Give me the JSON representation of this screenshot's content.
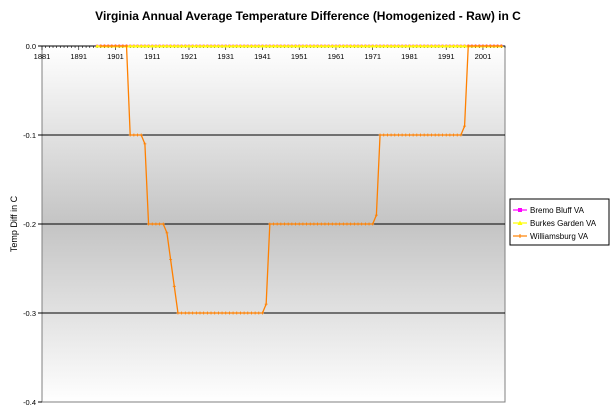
{
  "chart_data": {
    "type": "line",
    "title": "Virginia Annual Average Temperature Difference (Homogenized - Raw) in C",
    "xlabel": "",
    "ylabel": "Temp Diff in C",
    "xlim": [
      1881,
      2007
    ],
    "ylim": [
      -0.4,
      0.0
    ],
    "x_ticks": [
      "1881",
      "1891",
      "1901",
      "1911",
      "1921",
      "1931",
      "1941",
      "1951",
      "1961",
      "1971",
      "1981",
      "1991",
      "2001"
    ],
    "y_ticks": [
      "0.0",
      "-0.1",
      "-0.2",
      "-0.3",
      "-0.4"
    ],
    "grid": "horizontal",
    "legend_position": "right",
    "series": [
      {
        "name": "Bremo Bluff VA",
        "color": "#ff00ff",
        "marker": "square",
        "x": [
          1896,
          2006
        ],
        "y": [
          0.0,
          0.0
        ]
      },
      {
        "name": "Burkes Garden VA",
        "color": "#ffff00",
        "marker": "triangle",
        "x": [
          1896,
          2006
        ],
        "y": [
          0.0,
          0.0
        ]
      },
      {
        "name": "Williamsburg VA",
        "color": "#ff8000",
        "marker": "plus",
        "x": [
          1897,
          1904,
          1905,
          1908,
          1909,
          1910,
          1911,
          1914,
          1915,
          1918,
          1919,
          1941,
          1942,
          1943,
          1971,
          1972,
          1973,
          1995,
          1996,
          1997,
          2006
        ],
        "y": [
          0.0,
          0.0,
          -0.1,
          -0.1,
          -0.11,
          -0.2,
          -0.2,
          -0.2,
          -0.21,
          -0.3,
          -0.3,
          -0.3,
          -0.29,
          -0.2,
          -0.2,
          -0.19,
          -0.1,
          -0.1,
          -0.09,
          0.0,
          0.0
        ]
      }
    ]
  }
}
